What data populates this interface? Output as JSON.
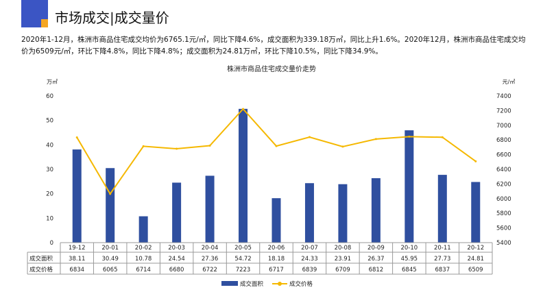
{
  "header": {
    "title": "市场成交|成交量价"
  },
  "summary": "2020年1-12月，株洲市商品住宅成交均价为6765.1元/㎡，同比下降4.6%，成交面积为339.18万㎡，同比上升1.6%。2020年12月，株洲市商品住宅成交均价为6509元/㎡，环比下降4.8%，同比下降4.8%；成交面积为24.81万㎡，环比下降10.5%，同比下降34.9%。",
  "colors": {
    "bar": "#2f4f9f",
    "line": "#f5b800",
    "logo_blue": "#3b55c4",
    "logo_orange": "#f5a623"
  },
  "chart_data": {
    "type": "bar+line",
    "title": "株洲市商品住宅成交量价走势",
    "categories": [
      "19-12",
      "20-01",
      "20-02",
      "20-03",
      "20-04",
      "20-05",
      "20-06",
      "20-07",
      "20-08",
      "20-09",
      "20-10",
      "20-11",
      "20-12"
    ],
    "series": [
      {
        "name": "成交面积",
        "type": "bar",
        "axis": "left",
        "values": [
          38.11,
          30.49,
          10.78,
          24.54,
          27.36,
          54.72,
          18.18,
          24.33,
          23.91,
          26.37,
          45.95,
          27.73,
          24.81
        ]
      },
      {
        "name": "成交价格",
        "type": "line",
        "axis": "right",
        "values": [
          6834,
          6065,
          6714,
          6680,
          6722,
          7223,
          6717,
          6839,
          6709,
          6812,
          6845,
          6837,
          6509
        ]
      }
    ],
    "ylabel_left": "万㎡",
    "ylabel_right": "元/㎡",
    "ylim_left": [
      0,
      60
    ],
    "yticks_left": [
      0,
      10,
      20,
      30,
      40,
      50,
      60
    ],
    "ylim_right": [
      5400,
      7400
    ],
    "yticks_right": [
      5400,
      5600,
      5800,
      6000,
      6200,
      6400,
      6600,
      6800,
      7000,
      7200,
      7400
    ],
    "grid": false,
    "legend": "bottom",
    "data_table": true
  }
}
